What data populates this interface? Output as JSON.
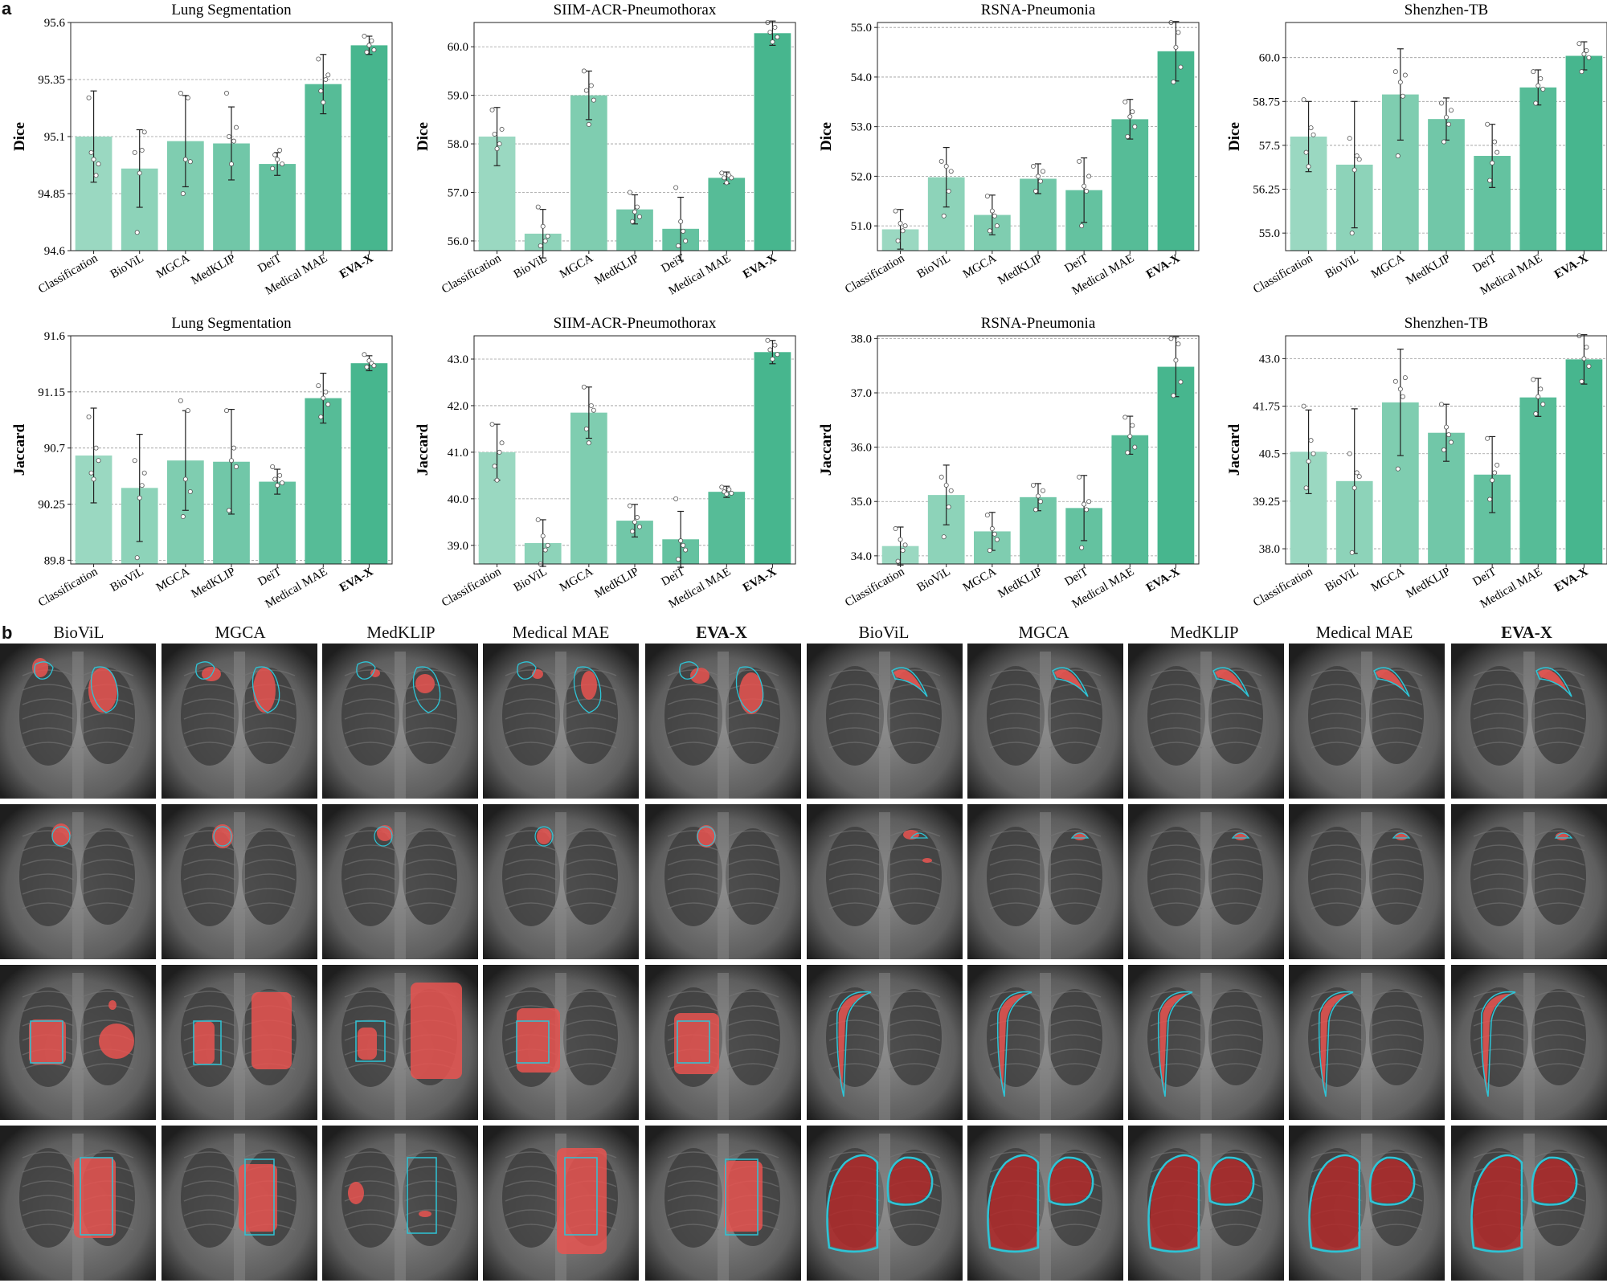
{
  "panels": {
    "a": "a",
    "b": "b"
  },
  "colors": {
    "bars": [
      "#9ad8c1",
      "#8dd3b9",
      "#7fcdb0",
      "#71c7a8",
      "#64c2a0",
      "#56bc97",
      "#47b68e"
    ],
    "points": "#ffffff",
    "overlay_prediction": "#e85450",
    "overlay_ground_truth": "#2ec4d6"
  },
  "chart_data": [
    {
      "type": "bar",
      "title": "Lung Segmentation",
      "ylabel": "Dice",
      "ylim": [
        94.6,
        95.6
      ],
      "yticks": [
        "94.6",
        "94.85",
        "95.1",
        "95.35",
        "95.6"
      ],
      "categories": [
        "Classification",
        "BioViL",
        "MGCA",
        "MedKLIP",
        "DeiT",
        "Medical MAE",
        "EVA-X"
      ],
      "values": [
        95.1,
        94.96,
        95.08,
        95.07,
        94.98,
        95.33,
        95.5
      ],
      "errors": [
        0.2,
        0.17,
        0.2,
        0.16,
        0.05,
        0.13,
        0.04
      ],
      "points": [
        [
          95.27,
          95.03,
          95.0,
          94.93,
          94.98
        ],
        [
          95.03,
          94.68,
          94.94,
          95.04,
          95.12
        ],
        [
          95.29,
          94.85,
          95.0,
          95.27,
          94.99
        ],
        [
          95.29,
          95.1,
          94.98,
          95.08,
          95.14
        ],
        [
          94.96,
          95.02,
          95.0,
          95.04,
          94.98
        ],
        [
          95.44,
          95.3,
          95.25,
          95.35,
          95.37
        ],
        [
          95.54,
          95.47,
          95.5,
          95.52,
          95.48
        ]
      ],
      "grid": true
    },
    {
      "type": "bar",
      "title": "SIIM-ACR-Pneumothorax",
      "ylabel": "Dice",
      "ylim": [
        55.8,
        60.5
      ],
      "yticks": [
        "56.0",
        "57.0",
        "58.0",
        "59.0",
        "60.0"
      ],
      "categories": [
        "Classification",
        "BioViL",
        "MGCA",
        "MedKLIP",
        "DeiT",
        "Medical MAE",
        "EVA-X"
      ],
      "values": [
        58.15,
        56.15,
        59.0,
        56.65,
        56.25,
        57.3,
        60.28
      ],
      "errors": [
        0.6,
        0.5,
        0.5,
        0.3,
        0.65,
        0.12,
        0.25
      ],
      "points": [
        [
          58.7,
          58.2,
          57.9,
          58.0,
          58.3
        ],
        [
          56.7,
          55.9,
          56.3,
          56.0,
          56.1
        ],
        [
          59.5,
          59.1,
          58.4,
          59.2,
          58.9
        ],
        [
          57.0,
          56.4,
          56.6,
          56.7,
          56.5
        ],
        [
          57.1,
          55.9,
          56.4,
          56.2,
          56.0
        ],
        [
          57.4,
          57.3,
          57.2,
          57.35,
          57.3
        ],
        [
          60.5,
          60.3,
          60.1,
          60.4,
          60.2
        ]
      ],
      "grid": true
    },
    {
      "type": "bar",
      "title": "RSNA-Pneumonia",
      "ylabel": "Dice",
      "ylim": [
        50.5,
        55.1
      ],
      "yticks": [
        "51.0",
        "52.0",
        "53.0",
        "54.0",
        "55.0"
      ],
      "categories": [
        "Classification",
        "BioViL",
        "MGCA",
        "MedKLIP",
        "DeiT",
        "Medical MAE",
        "EVA-X"
      ],
      "values": [
        50.93,
        51.98,
        51.22,
        51.95,
        51.72,
        53.15,
        54.52
      ],
      "errors": [
        0.4,
        0.6,
        0.4,
        0.3,
        0.65,
        0.4,
        0.6
      ],
      "points": [
        [
          51.3,
          50.7,
          51.05,
          50.9,
          51.0
        ],
        [
          52.3,
          51.2,
          52.2,
          51.7,
          52.1
        ],
        [
          51.6,
          50.9,
          51.3,
          51.2,
          51.0
        ],
        [
          52.2,
          51.7,
          52.0,
          51.9,
          52.1
        ],
        [
          52.3,
          51.0,
          51.8,
          51.7,
          52.0
        ],
        [
          53.5,
          52.8,
          53.2,
          53.3,
          53.0
        ],
        [
          55.1,
          53.9,
          54.6,
          54.9,
          54.2
        ]
      ],
      "grid": true
    },
    {
      "type": "bar",
      "title": "Shenzhen-TB",
      "ylabel": "Dice",
      "ylim": [
        54.5,
        61.0
      ],
      "yticks": [
        "55.0",
        "56.25",
        "57.5",
        "58.75",
        "60.0"
      ],
      "categories": [
        "Classification",
        "BioViL",
        "MGCA",
        "MedKLIP",
        "DeiT",
        "Medical MAE",
        "EVA-X"
      ],
      "values": [
        57.75,
        56.95,
        58.95,
        58.25,
        57.2,
        59.15,
        60.05
      ],
      "errors": [
        1.0,
        1.8,
        1.3,
        0.6,
        0.9,
        0.5,
        0.4
      ],
      "points": [
        [
          58.8,
          57.3,
          56.9,
          58.0,
          57.8
        ],
        [
          57.7,
          55.0,
          56.8,
          57.2,
          57.1
        ],
        [
          59.6,
          57.2,
          59.3,
          58.9,
          59.5
        ],
        [
          58.7,
          57.6,
          58.3,
          58.1,
          58.5
        ],
        [
          58.1,
          56.5,
          57.0,
          57.6,
          57.3
        ],
        [
          59.6,
          58.7,
          59.2,
          59.4,
          59.1
        ],
        [
          60.4,
          59.6,
          60.1,
          60.2,
          60.0
        ]
      ],
      "grid": true
    },
    {
      "type": "bar",
      "title": "Lung Segmentation",
      "ylabel": "Jaccard",
      "ylim": [
        89.77,
        91.6
      ],
      "yticks": [
        "89.8",
        "90.25",
        "90.7",
        "91.15",
        "91.6"
      ],
      "categories": [
        "Classification",
        "BioViL",
        "MGCA",
        "MedKLIP",
        "DeiT",
        "Medical MAE",
        "EVA-X"
      ],
      "values": [
        90.64,
        90.38,
        90.6,
        90.59,
        90.43,
        91.1,
        91.38
      ],
      "errors": [
        0.38,
        0.43,
        0.4,
        0.42,
        0.1,
        0.2,
        0.06
      ],
      "points": [
        [
          90.95,
          90.5,
          90.45,
          90.7,
          90.6
        ],
        [
          90.6,
          89.82,
          90.3,
          90.4,
          90.5
        ],
        [
          91.08,
          90.15,
          90.45,
          91.0,
          90.35
        ],
        [
          91.0,
          90.2,
          90.6,
          90.7,
          90.55
        ],
        [
          90.55,
          90.45,
          90.4,
          90.48,
          90.42
        ],
        [
          91.2,
          90.95,
          91.1,
          91.15,
          91.05
        ],
        [
          91.45,
          91.35,
          91.4,
          91.38,
          91.36
        ]
      ],
      "grid": true
    },
    {
      "type": "bar",
      "title": "SIIM-ACR-Pneumothorax",
      "ylabel": "Jaccard",
      "ylim": [
        38.6,
        43.5
      ],
      "yticks": [
        "39.0",
        "40.0",
        "41.0",
        "42.0",
        "43.0"
      ],
      "categories": [
        "Classification",
        "BioViL",
        "MGCA",
        "MedKLIP",
        "DeiT",
        "Medical MAE",
        "EVA-X"
      ],
      "values": [
        41.0,
        39.05,
        41.85,
        39.53,
        39.13,
        40.15,
        43.15
      ],
      "errors": [
        0.6,
        0.5,
        0.55,
        0.35,
        0.6,
        0.12,
        0.25
      ],
      "points": [
        [
          41.6,
          40.7,
          40.4,
          41.0,
          41.2
        ],
        [
          39.55,
          38.6,
          39.2,
          38.9,
          39.0
        ],
        [
          42.4,
          41.5,
          41.2,
          42.0,
          41.9
        ],
        [
          39.85,
          39.3,
          39.5,
          39.6,
          39.4
        ],
        [
          40.0,
          38.7,
          39.1,
          39.0,
          38.9
        ],
        [
          40.25,
          40.15,
          40.1,
          40.2,
          40.12
        ],
        [
          43.4,
          43.2,
          43.0,
          43.3,
          43.1
        ]
      ],
      "grid": true
    },
    {
      "type": "bar",
      "title": "RSNA-Pneumonia",
      "ylabel": "Jaccard",
      "ylim": [
        33.85,
        38.05
      ],
      "yticks": [
        "34.0",
        "35.0",
        "36.0",
        "37.0",
        "38.0"
      ],
      "categories": [
        "Classification",
        "BioViL",
        "MGCA",
        "MedKLIP",
        "DeiT",
        "Medical MAE",
        "EVA-X"
      ],
      "values": [
        34.18,
        35.12,
        34.45,
        35.08,
        34.88,
        36.22,
        37.48
      ],
      "errors": [
        0.35,
        0.55,
        0.35,
        0.25,
        0.6,
        0.35,
        0.55
      ],
      "points": [
        [
          34.5,
          33.9,
          34.3,
          34.1,
          34.2
        ],
        [
          35.45,
          34.35,
          35.3,
          34.9,
          35.2
        ],
        [
          34.75,
          34.1,
          34.5,
          34.4,
          34.3
        ],
        [
          35.3,
          34.85,
          35.1,
          35.0,
          35.2
        ],
        [
          35.45,
          34.15,
          34.95,
          34.85,
          35.0
        ],
        [
          36.55,
          35.9,
          36.2,
          36.4,
          36.0
        ],
        [
          38.0,
          36.95,
          37.6,
          37.9,
          37.2
        ]
      ],
      "grid": true
    },
    {
      "type": "bar",
      "title": "Shenzhen-TB",
      "ylabel": "Jaccard",
      "ylim": [
        37.6,
        43.6
      ],
      "yticks": [
        "38.0",
        "39.25",
        "40.5",
        "41.75",
        "43.0"
      ],
      "categories": [
        "Classification",
        "BioViL",
        "MGCA",
        "MedKLIP",
        "DeiT",
        "Medical MAE",
        "EVA-X"
      ],
      "values": [
        40.55,
        39.78,
        41.85,
        41.05,
        39.95,
        41.98,
        42.98
      ],
      "errors": [
        1.1,
        1.9,
        1.4,
        0.75,
        1.0,
        0.5,
        0.65
      ],
      "points": [
        [
          41.75,
          39.6,
          40.3,
          40.85,
          40.5
        ],
        [
          40.5,
          37.9,
          39.6,
          40.0,
          39.9
        ],
        [
          42.4,
          40.1,
          42.2,
          42.0,
          42.5
        ],
        [
          41.8,
          40.6,
          41.2,
          41.0,
          40.8
        ],
        [
          40.9,
          39.3,
          39.8,
          40.0,
          40.2
        ],
        [
          42.45,
          41.55,
          42.0,
          42.2,
          41.8
        ],
        [
          43.6,
          42.4,
          43.0,
          43.3,
          42.8
        ]
      ],
      "grid": true
    }
  ],
  "qualitative": {
    "left_headers": [
      "BioViL",
      "MGCA",
      "MedKLIP",
      "Medical MAE",
      "EVA-X"
    ],
    "right_headers": [
      "BioViL",
      "MGCA",
      "MedKLIP",
      "Medical MAE",
      "EVA-X"
    ]
  }
}
